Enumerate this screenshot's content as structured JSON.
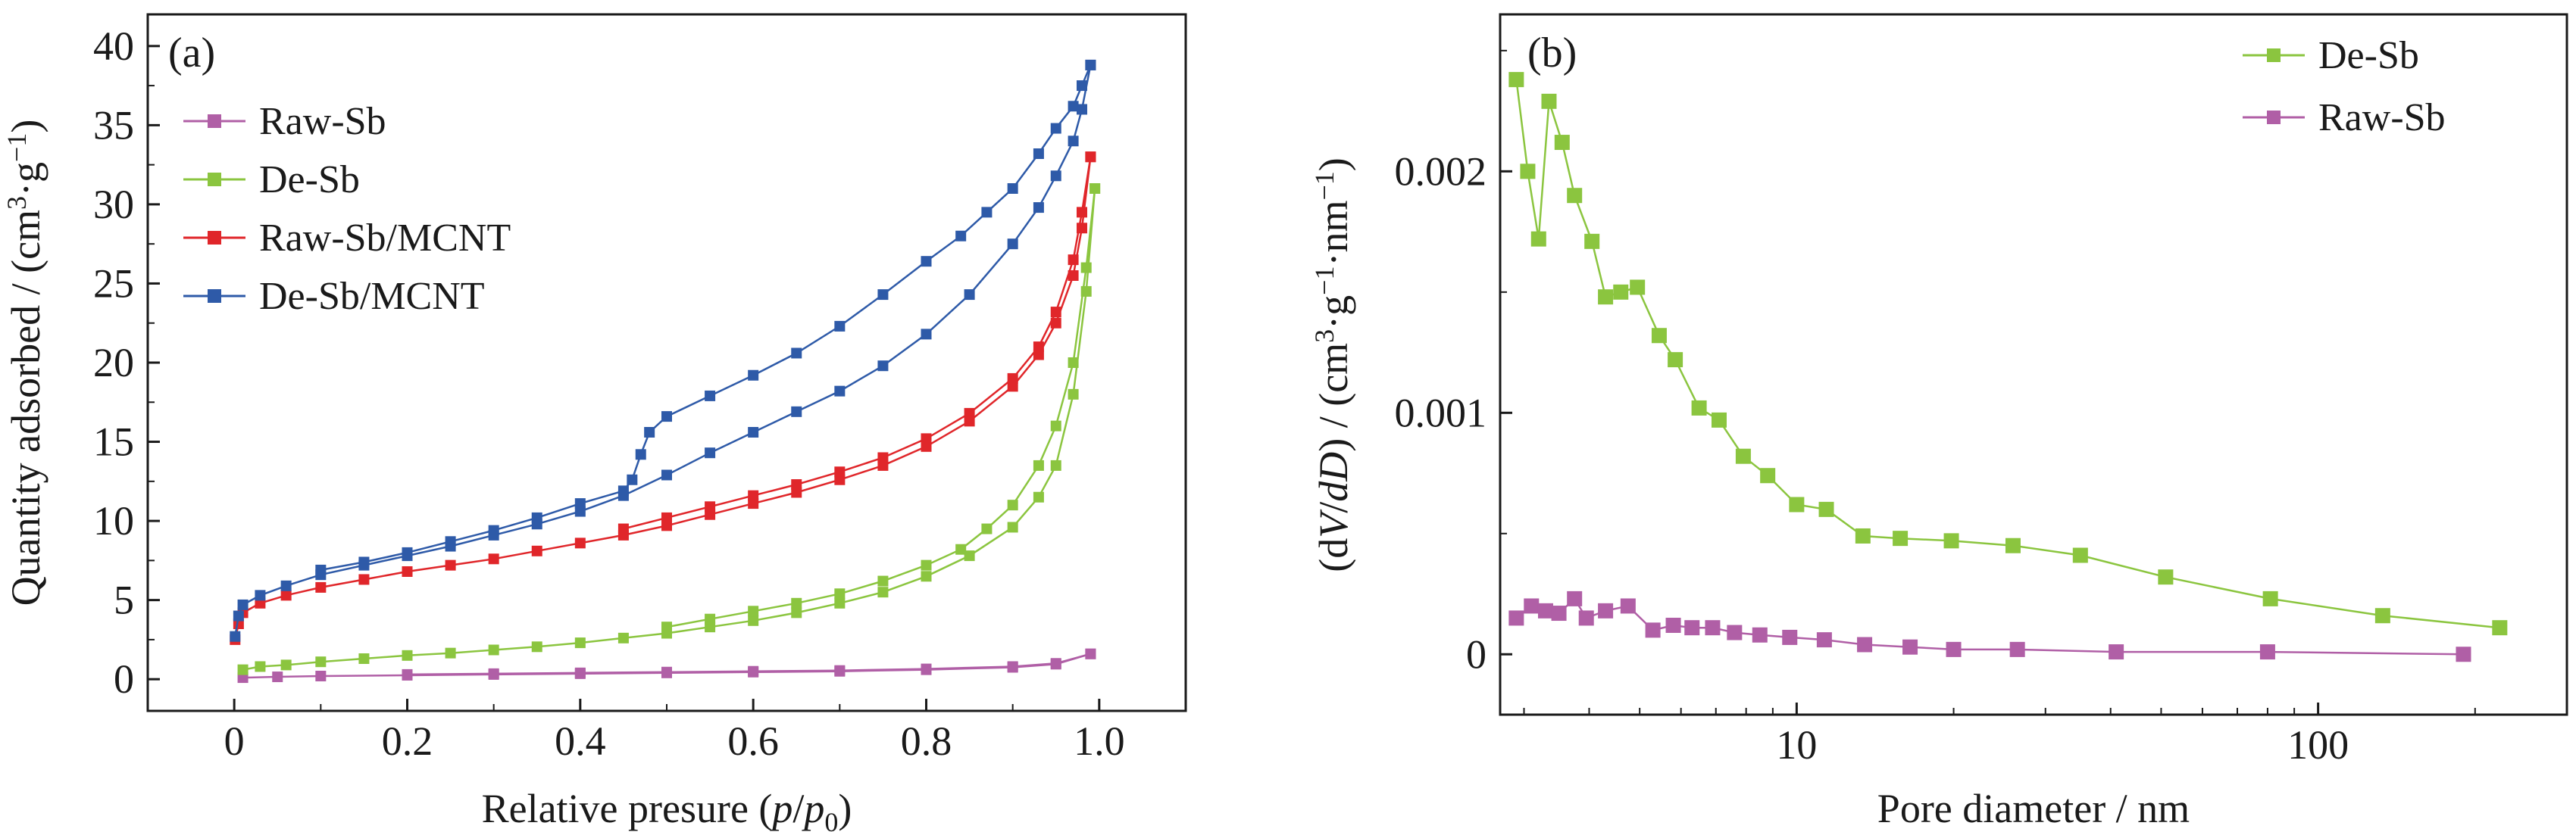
{
  "chart_data": [
    {
      "type": "line",
      "panel_label": "(a)",
      "xlabel": {
        "pre": "Relative presure (",
        "p": "p",
        "slash": "/",
        "p0": "p",
        "sub0": "0",
        "post": ")"
      },
      "ylabel": {
        "main": "Quantity adsorbed / (cm",
        "sup3": "3",
        "dot": "·g",
        "supm1": "−1",
        "close": ")"
      },
      "xlim": [
        -0.1,
        1.1
      ],
      "ylim": [
        -2,
        42
      ],
      "x_ticks": [
        0,
        0.2,
        0.4,
        0.6,
        0.8,
        1.0
      ],
      "x_tick_labels": [
        "0",
        "0.2",
        "0.4",
        "0.6",
        "0.8",
        "1.0"
      ],
      "y_ticks": [
        0,
        5,
        10,
        15,
        20,
        25,
        30,
        35,
        40
      ],
      "y_tick_labels": [
        "0",
        "5",
        "10",
        "15",
        "20",
        "25",
        "30",
        "35",
        "40"
      ],
      "legend_position": "upper-left",
      "series": [
        {
          "name": "Raw-Sb",
          "color": "#b05fa6",
          "adsorption": [
            [
              0.01,
              0.1
            ],
            [
              0.05,
              0.15
            ],
            [
              0.1,
              0.2
            ],
            [
              0.2,
              0.25
            ],
            [
              0.3,
              0.3
            ],
            [
              0.4,
              0.35
            ],
            [
              0.5,
              0.4
            ],
            [
              0.6,
              0.45
            ],
            [
              0.7,
              0.5
            ],
            [
              0.8,
              0.6
            ],
            [
              0.9,
              0.75
            ],
            [
              0.95,
              0.95
            ],
            [
              0.99,
              1.6
            ]
          ],
          "desorption": [
            [
              0.99,
              1.6
            ],
            [
              0.95,
              1.0
            ],
            [
              0.9,
              0.8
            ],
            [
              0.8,
              0.65
            ],
            [
              0.7,
              0.55
            ],
            [
              0.6,
              0.5
            ],
            [
              0.5,
              0.45
            ],
            [
              0.4,
              0.4
            ],
            [
              0.3,
              0.35
            ],
            [
              0.2,
              0.3
            ]
          ]
        },
        {
          "name": "De-Sb",
          "color": "#8bc53f",
          "adsorption": [
            [
              0.01,
              0.6
            ],
            [
              0.03,
              0.8
            ],
            [
              0.06,
              0.9
            ],
            [
              0.1,
              1.1
            ],
            [
              0.15,
              1.3
            ],
            [
              0.2,
              1.5
            ],
            [
              0.25,
              1.65
            ],
            [
              0.3,
              1.85
            ],
            [
              0.35,
              2.05
            ],
            [
              0.4,
              2.3
            ],
            [
              0.45,
              2.6
            ],
            [
              0.5,
              2.9
            ],
            [
              0.55,
              3.3
            ],
            [
              0.6,
              3.7
            ],
            [
              0.65,
              4.2
            ],
            [
              0.7,
              4.8
            ],
            [
              0.75,
              5.5
            ],
            [
              0.8,
              6.5
            ],
            [
              0.85,
              7.8
            ],
            [
              0.9,
              9.6
            ],
            [
              0.93,
              11.5
            ],
            [
              0.95,
              13.5
            ],
            [
              0.97,
              18
            ],
            [
              0.985,
              24.5
            ],
            [
              0.995,
              31
            ]
          ],
          "desorption": [
            [
              0.995,
              31
            ],
            [
              0.985,
              26
            ],
            [
              0.97,
              20
            ],
            [
              0.95,
              16
            ],
            [
              0.93,
              13.5
            ],
            [
              0.9,
              11
            ],
            [
              0.87,
              9.5
            ],
            [
              0.84,
              8.2
            ],
            [
              0.8,
              7.2
            ],
            [
              0.75,
              6.2
            ],
            [
              0.7,
              5.4
            ],
            [
              0.65,
              4.8
            ],
            [
              0.6,
              4.3
            ],
            [
              0.55,
              3.8
            ],
            [
              0.5,
              3.3
            ]
          ]
        },
        {
          "name": "Raw-Sb/MCNT",
          "color": "#e0262a",
          "adsorption": [
            [
              0.001,
              2.5
            ],
            [
              0.005,
              3.5
            ],
            [
              0.01,
              4.2
            ],
            [
              0.03,
              4.8
            ],
            [
              0.06,
              5.3
            ],
            [
              0.1,
              5.8
            ],
            [
              0.15,
              6.3
            ],
            [
              0.2,
              6.8
            ],
            [
              0.25,
              7.2
            ],
            [
              0.3,
              7.6
            ],
            [
              0.35,
              8.1
            ],
            [
              0.4,
              8.6
            ],
            [
              0.45,
              9.1
            ],
            [
              0.5,
              9.7
            ],
            [
              0.55,
              10.4
            ],
            [
              0.6,
              11.1
            ],
            [
              0.65,
              11.8
            ],
            [
              0.7,
              12.6
            ],
            [
              0.75,
              13.5
            ],
            [
              0.8,
              14.7
            ],
            [
              0.85,
              16.3
            ],
            [
              0.9,
              18.5
            ],
            [
              0.93,
              20.5
            ],
            [
              0.95,
              22.5
            ],
            [
              0.97,
              25.5
            ],
            [
              0.98,
              28.5
            ],
            [
              0.99,
              33
            ]
          ],
          "desorption": [
            [
              0.99,
              33
            ],
            [
              0.98,
              29.5
            ],
            [
              0.97,
              26.5
            ],
            [
              0.95,
              23.2
            ],
            [
              0.93,
              21
            ],
            [
              0.9,
              19
            ],
            [
              0.85,
              16.8
            ],
            [
              0.8,
              15.2
            ],
            [
              0.75,
              14
            ],
            [
              0.7,
              13.1
            ],
            [
              0.65,
              12.3
            ],
            [
              0.6,
              11.6
            ],
            [
              0.55,
              10.9
            ],
            [
              0.5,
              10.2
            ],
            [
              0.45,
              9.5
            ]
          ]
        },
        {
          "name": "De-Sb/MCNT",
          "color": "#2e5aa8",
          "adsorption": [
            [
              0.001,
              2.7
            ],
            [
              0.005,
              4.0
            ],
            [
              0.01,
              4.7
            ],
            [
              0.03,
              5.3
            ],
            [
              0.06,
              5.9
            ],
            [
              0.1,
              6.6
            ],
            [
              0.15,
              7.2
            ],
            [
              0.2,
              7.8
            ],
            [
              0.25,
              8.4
            ],
            [
              0.3,
              9.1
            ],
            [
              0.35,
              9.8
            ],
            [
              0.4,
              10.6
            ],
            [
              0.45,
              11.6
            ],
            [
              0.5,
              12.9
            ],
            [
              0.55,
              14.3
            ],
            [
              0.6,
              15.6
            ],
            [
              0.65,
              16.9
            ],
            [
              0.7,
              18.2
            ],
            [
              0.75,
              19.8
            ],
            [
              0.8,
              21.8
            ],
            [
              0.85,
              24.3
            ],
            [
              0.9,
              27.5
            ],
            [
              0.93,
              29.8
            ],
            [
              0.95,
              31.8
            ],
            [
              0.97,
              34
            ],
            [
              0.98,
              36
            ],
            [
              0.99,
              38.8
            ]
          ],
          "desorption": [
            [
              0.99,
              38.8
            ],
            [
              0.98,
              37.5
            ],
            [
              0.97,
              36.2
            ],
            [
              0.95,
              34.8
            ],
            [
              0.93,
              33.2
            ],
            [
              0.9,
              31
            ],
            [
              0.87,
              29.5
            ],
            [
              0.84,
              28
            ],
            [
              0.8,
              26.4
            ],
            [
              0.75,
              24.3
            ],
            [
              0.7,
              22.3
            ],
            [
              0.65,
              20.6
            ],
            [
              0.6,
              19.2
            ],
            [
              0.55,
              17.9
            ],
            [
              0.5,
              16.6
            ],
            [
              0.48,
              15.6
            ],
            [
              0.47,
              14.2
            ],
            [
              0.46,
              12.6
            ],
            [
              0.45,
              11.9
            ],
            [
              0.4,
              11.1
            ],
            [
              0.35,
              10.2
            ],
            [
              0.3,
              9.4
            ],
            [
              0.25,
              8.7
            ],
            [
              0.2,
              8.0
            ],
            [
              0.15,
              7.4
            ],
            [
              0.1,
              6.9
            ]
          ]
        }
      ]
    },
    {
      "type": "line",
      "panel_label": "(b)",
      "xlabel": {
        "text": "Pore diameter / nm"
      },
      "ylabel": {
        "open": "(d",
        "V": "V",
        "slash": "/",
        "dD": "dD",
        "mid": ") / (cm",
        "sup3": "3",
        "g": "·g",
        "supm1a": "−1",
        "nm": "·nm",
        "supm1b": "−1",
        "close": ")"
      },
      "xscale": "log",
      "xlim": [
        2.7,
        300
      ],
      "ylim": [
        -0.00025,
        0.00265
      ],
      "x_ticks": [
        10,
        100
      ],
      "x_tick_labels": [
        "10",
        "100"
      ],
      "y_ticks": [
        0,
        0.001,
        0.002
      ],
      "y_tick_labels": [
        "0",
        "0.001",
        "0.002"
      ],
      "legend_position": "upper-right",
      "series": [
        {
          "name": "De-Sb",
          "color": "#8bc53f",
          "points": [
            [
              2.9,
              0.00238
            ],
            [
              3.05,
              0.002
            ],
            [
              3.2,
              0.00172
            ],
            [
              3.35,
              0.00229
            ],
            [
              3.55,
              0.00212
            ],
            [
              3.75,
              0.0019
            ],
            [
              4.05,
              0.00171
            ],
            [
              4.3,
              0.00148
            ],
            [
              4.6,
              0.0015
            ],
            [
              4.95,
              0.00152
            ],
            [
              5.45,
              0.00132
            ],
            [
              5.85,
              0.00122
            ],
            [
              6.5,
              0.00102
            ],
            [
              7.1,
              0.00097
            ],
            [
              7.9,
              0.00082
            ],
            [
              8.8,
              0.00074
            ],
            [
              10.0,
              0.00062
            ],
            [
              11.4,
              0.0006
            ],
            [
              13.4,
              0.00049
            ],
            [
              15.8,
              0.00048
            ],
            [
              19.8,
              0.00047
            ],
            [
              26.0,
              0.00045
            ],
            [
              35.0,
              0.00041
            ],
            [
              51.0,
              0.00032
            ],
            [
              81.0,
              0.00023
            ],
            [
              133.0,
              0.00016
            ],
            [
              223.0,
              0.00011
            ]
          ]
        },
        {
          "name": "Raw-Sb",
          "color": "#b05fa6",
          "points": [
            [
              2.9,
              0.00015
            ],
            [
              3.1,
              0.0002
            ],
            [
              3.3,
              0.00018
            ],
            [
              3.5,
              0.00017
            ],
            [
              3.75,
              0.00023
            ],
            [
              3.95,
              0.00015
            ],
            [
              4.3,
              0.00018
            ],
            [
              4.75,
              0.0002
            ],
            [
              5.3,
              0.0001
            ],
            [
              5.8,
              0.00012
            ],
            [
              6.3,
              0.00011
            ],
            [
              6.9,
              0.00011
            ],
            [
              7.6,
              9e-05
            ],
            [
              8.5,
              8e-05
            ],
            [
              9.7,
              7e-05
            ],
            [
              11.3,
              6e-05
            ],
            [
              13.5,
              4e-05
            ],
            [
              16.5,
              3e-05
            ],
            [
              20.0,
              2e-05
            ],
            [
              26.5,
              2e-05
            ],
            [
              41.0,
              1e-05
            ],
            [
              80.0,
              1e-05
            ],
            [
              190.0,
              0.0
            ]
          ]
        }
      ]
    }
  ]
}
